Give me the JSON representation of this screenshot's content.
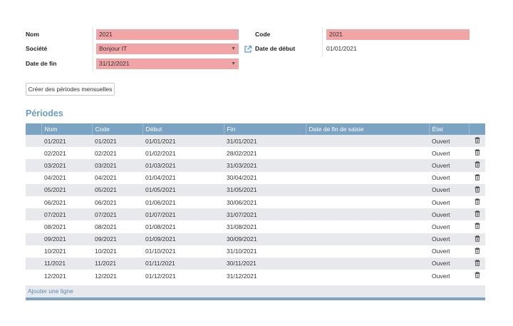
{
  "form": {
    "nom_label": "Nom",
    "nom_value": "2021",
    "societe_label": "Société",
    "societe_value": "Bonjour IT",
    "date_fin_label": "Date de fin",
    "date_fin_value": "31/12/2021",
    "code_label": "Code",
    "code_value": "2021",
    "date_debut_label": "Date de début",
    "date_debut_value": "01/01/2021",
    "required_color": "#f1a5a7"
  },
  "actions": {
    "create_monthly_label": "Créer des périodes mensuelles"
  },
  "periodes": {
    "title": "Périodes",
    "columns": [
      "",
      "Nom",
      "Code",
      "Début",
      "Fin",
      "Date de fin de saisie",
      "État",
      ""
    ],
    "rows": [
      {
        "nom": "01/2021",
        "code": "01/2021",
        "debut": "01/01/2021",
        "fin": "31/01/2021",
        "date_fin_saisie": "",
        "etat": "Ouvert"
      },
      {
        "nom": "02/2021",
        "code": "02/2021",
        "debut": "01/02/2021",
        "fin": "28/02/2021",
        "date_fin_saisie": "",
        "etat": "Ouvert"
      },
      {
        "nom": "03/2021",
        "code": "03/2021",
        "debut": "01/03/2021",
        "fin": "31/03/2021",
        "date_fin_saisie": "",
        "etat": "Ouvert"
      },
      {
        "nom": "04/2021",
        "code": "04/2021",
        "debut": "01/04/2021",
        "fin": "30/04/2021",
        "date_fin_saisie": "",
        "etat": "Ouvert"
      },
      {
        "nom": "05/2021",
        "code": "05/2021",
        "debut": "01/05/2021",
        "fin": "31/05/2021",
        "date_fin_saisie": "",
        "etat": "Ouvert"
      },
      {
        "nom": "06/2021",
        "code": "06/2021",
        "debut": "01/06/2021",
        "fin": "30/06/2021",
        "date_fin_saisie": "",
        "etat": "Ouvert"
      },
      {
        "nom": "07/2021",
        "code": "07/2021",
        "debut": "01/07/2021",
        "fin": "31/07/2021",
        "date_fin_saisie": "",
        "etat": "Ouvert"
      },
      {
        "nom": "08/2021",
        "code": "08/2021",
        "debut": "01/08/2021",
        "fin": "31/08/2021",
        "date_fin_saisie": "",
        "etat": "Ouvert"
      },
      {
        "nom": "09/2021",
        "code": "09/2021",
        "debut": "01/09/2021",
        "fin": "30/09/2021",
        "date_fin_saisie": "",
        "etat": "Ouvert"
      },
      {
        "nom": "10/2021",
        "code": "10/2021",
        "debut": "01/10/2021",
        "fin": "31/10/2021",
        "date_fin_saisie": "",
        "etat": "Ouvert"
      },
      {
        "nom": "11/2021",
        "code": "11/2021",
        "debut": "01/11/2021",
        "fin": "30/11/2021",
        "date_fin_saisie": "",
        "etat": "Ouvert"
      },
      {
        "nom": "12/2021",
        "code": "12/2021",
        "debut": "01/12/2021",
        "fin": "31/12/2021",
        "date_fin_saisie": "",
        "etat": "Ouvert"
      }
    ],
    "row_icon": "trash-icon",
    "add_line_label": "Ajouter une ligne",
    "header_color": "#7ba3c4"
  }
}
